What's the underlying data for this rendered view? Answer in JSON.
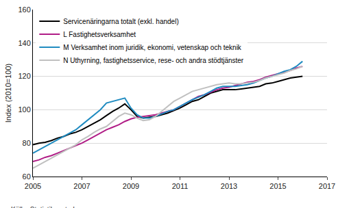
{
  "chart_data": {
    "type": "line",
    "y_label": "Index (2010=100)",
    "source": "Källa: Statistikcentralen",
    "x": [
      2005,
      2005.25,
      2005.5,
      2005.75,
      2006,
      2006.25,
      2006.5,
      2006.75,
      2007,
      2007.25,
      2007.5,
      2007.75,
      2008,
      2008.25,
      2008.5,
      2008.75,
      2009,
      2009.25,
      2009.5,
      2009.75,
      2010,
      2010.25,
      2010.5,
      2010.75,
      2011,
      2011.25,
      2011.5,
      2011.75,
      2012,
      2012.25,
      2012.5,
      2012.75,
      2013,
      2013.25,
      2013.5,
      2013.75,
      2014,
      2014.25,
      2014.5,
      2014.75,
      2015,
      2015.25,
      2015.5,
      2015.75,
      2016
    ],
    "series": [
      {
        "name": "Servicenäringarna totalt (exkl. handel)",
        "color": "#000000",
        "values": [
          79,
          80,
          80.5,
          81.5,
          83,
          84,
          85.5,
          86.5,
          88,
          90,
          92,
          94,
          96.5,
          99,
          101,
          103.5,
          100,
          96,
          95,
          95.5,
          96,
          97,
          98,
          99.5,
          101,
          103,
          105,
          106,
          108,
          110,
          111,
          112,
          112,
          112,
          112.5,
          113,
          113.5,
          114,
          115.5,
          116,
          117,
          118,
          119,
          119.5,
          120
        ]
      },
      {
        "name": "L Fastighetsverksamhet",
        "color": "#b01c86",
        "values": [
          69,
          70,
          71.5,
          72.5,
          74,
          75.5,
          77,
          78.5,
          80,
          82,
          84,
          86,
          88,
          89.5,
          91,
          93,
          94.5,
          95.5,
          96,
          96.5,
          97,
          98,
          99,
          100,
          102,
          104,
          106,
          108,
          109,
          110.5,
          112,
          113,
          113.5,
          114.5,
          115.5,
          116.5,
          117,
          118,
          119.5,
          120.5,
          121.5,
          122.5,
          123.5,
          125,
          126
        ]
      },
      {
        "name": "M Verksamhet inom juridik, ekonomi, vetenskap och teknik",
        "color": "#1f8bc0",
        "values": [
          74,
          76,
          78,
          80,
          82,
          84,
          86,
          88,
          91,
          94,
          97,
          100,
          104,
          105,
          106,
          107,
          101,
          97,
          95,
          95,
          96,
          97.5,
          99,
          100,
          102,
          104,
          106,
          107.5,
          109,
          111,
          113,
          114,
          114,
          114,
          114.5,
          115,
          116,
          117.5,
          119,
          120,
          121.5,
          123,
          124,
          126,
          129
        ]
      },
      {
        "name": "N Uthyrning, fastighetsservice, rese- och andra stödtjänster",
        "color": "#c0c0c0",
        "values": [
          65,
          67,
          69,
          71,
          73,
          75,
          77,
          79,
          82,
          84,
          86.5,
          88.5,
          90,
          93,
          96,
          98,
          97,
          95,
          93.5,
          94,
          96,
          99,
          102,
          105,
          107,
          109,
          111,
          112,
          113,
          114,
          115,
          115.5,
          116,
          115.5,
          115.5,
          116,
          116.5,
          117.5,
          119,
          120,
          121,
          122,
          123.5,
          124.5,
          126
        ]
      }
    ],
    "xlim": [
      2005,
      2017
    ],
    "xticks": [
      2005,
      2007,
      2009,
      2011,
      2013,
      2015,
      2017
    ],
    "ylim": [
      60,
      160
    ],
    "yticks": [
      60,
      80,
      100,
      120,
      140,
      160
    ],
    "grid": true,
    "legend": "top-left"
  }
}
